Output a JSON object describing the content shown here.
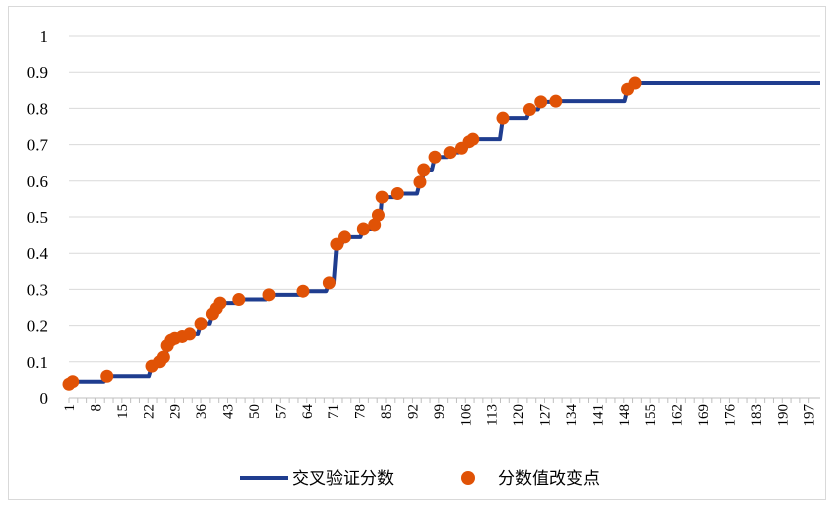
{
  "chart_data": {
    "type": "line",
    "title": "",
    "xlabel": "",
    "ylabel": "",
    "ylim": [
      0,
      1
    ],
    "xlim": [
      1,
      200
    ],
    "yticks": [
      "0",
      "0.1",
      "0.2",
      "0.3",
      "0.4",
      "0.5",
      "0.6",
      "0.7",
      "0.8",
      "0.9",
      "1"
    ],
    "xticks": [
      "1",
      "8",
      "15",
      "22",
      "29",
      "36",
      "43",
      "50",
      "57",
      "64",
      "71",
      "78",
      "85",
      "92",
      "99",
      "106",
      "113",
      "120",
      "127",
      "134",
      "141",
      "148",
      "155",
      "162",
      "169",
      "176",
      "183",
      "190",
      "197"
    ],
    "grid": "y-major",
    "legend_position": "bottom",
    "series": [
      {
        "name": "交叉验证分数",
        "kind": "step-line",
        "color": "#1f3d8f",
        "points": [
          [
            1,
            0.038
          ],
          [
            2,
            0.045
          ],
          [
            11,
            0.06
          ],
          [
            23,
            0.088
          ],
          [
            25,
            0.1
          ],
          [
            26,
            0.113
          ],
          [
            27,
            0.145
          ],
          [
            28,
            0.16
          ],
          [
            29,
            0.165
          ],
          [
            31,
            0.17
          ],
          [
            33,
            0.177
          ],
          [
            36,
            0.205
          ],
          [
            39,
            0.232
          ],
          [
            40,
            0.247
          ],
          [
            41,
            0.262
          ],
          [
            46,
            0.272
          ],
          [
            54,
            0.285
          ],
          [
            63,
            0.295
          ],
          [
            70,
            0.318
          ],
          [
            72,
            0.425
          ],
          [
            74,
            0.445
          ],
          [
            79,
            0.467
          ],
          [
            82,
            0.478
          ],
          [
            83,
            0.505
          ],
          [
            84,
            0.555
          ],
          [
            88,
            0.565
          ],
          [
            94,
            0.597
          ],
          [
            95,
            0.63
          ],
          [
            98,
            0.665
          ],
          [
            102,
            0.678
          ],
          [
            105,
            0.69
          ],
          [
            107,
            0.708
          ],
          [
            108,
            0.715
          ],
          [
            116,
            0.773
          ],
          [
            123,
            0.797
          ],
          [
            126,
            0.818
          ],
          [
            130,
            0.82
          ],
          [
            149,
            0.853
          ],
          [
            151,
            0.87
          ],
          [
            200,
            0.87
          ]
        ]
      },
      {
        "name": "分数值改变点",
        "kind": "scatter",
        "color": "#e05206",
        "points": [
          [
            1,
            0.038
          ],
          [
            2,
            0.045
          ],
          [
            11,
            0.06
          ],
          [
            23,
            0.088
          ],
          [
            25,
            0.1
          ],
          [
            26,
            0.113
          ],
          [
            27,
            0.145
          ],
          [
            28,
            0.16
          ],
          [
            29,
            0.165
          ],
          [
            31,
            0.17
          ],
          [
            33,
            0.177
          ],
          [
            36,
            0.205
          ],
          [
            39,
            0.232
          ],
          [
            40,
            0.247
          ],
          [
            41,
            0.262
          ],
          [
            46,
            0.272
          ],
          [
            54,
            0.285
          ],
          [
            63,
            0.295
          ],
          [
            70,
            0.318
          ],
          [
            72,
            0.425
          ],
          [
            74,
            0.445
          ],
          [
            79,
            0.467
          ],
          [
            82,
            0.478
          ],
          [
            83,
            0.505
          ],
          [
            84,
            0.555
          ],
          [
            88,
            0.565
          ],
          [
            94,
            0.597
          ],
          [
            95,
            0.63
          ],
          [
            98,
            0.665
          ],
          [
            102,
            0.678
          ],
          [
            105,
            0.69
          ],
          [
            107,
            0.708
          ],
          [
            108,
            0.715
          ],
          [
            116,
            0.773
          ],
          [
            123,
            0.797
          ],
          [
            126,
            0.818
          ],
          [
            130,
            0.82
          ],
          [
            149,
            0.853
          ],
          [
            151,
            0.87
          ]
        ]
      }
    ]
  }
}
